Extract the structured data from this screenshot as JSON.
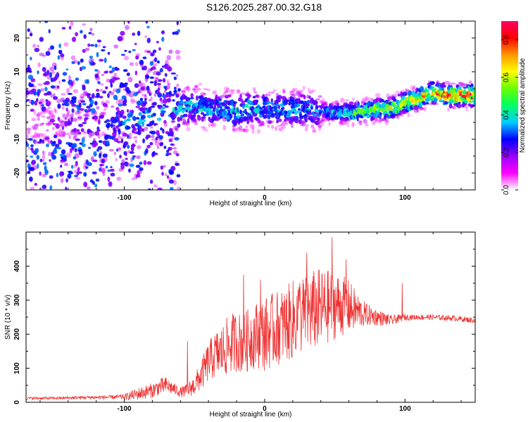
{
  "title": "S126.2025.287.00.32.G18",
  "colors": {
    "axis": "#000000",
    "snr_line": "#ee3333"
  },
  "chart_data": [
    {
      "type": "heatmap",
      "name": "spectrogram",
      "xlabel": "Height of straight line (km)",
      "ylabel": "Frequency (Hz)",
      "xlim": [
        -170,
        150
      ],
      "ylim": [
        -25,
        25
      ],
      "x_ticks": [
        -100,
        0,
        100
      ],
      "y_ticks": [
        -20,
        -10,
        0,
        10,
        20
      ],
      "colorbar": {
        "label": "Normalized spectral amplitude",
        "range": [
          0.0,
          0.9
        ],
        "ticks": [
          0.0,
          0.2,
          0.4,
          0.6,
          0.8
        ],
        "stops": [
          "#ffffff",
          "#ff00ff",
          "#9900ff",
          "#0000ff",
          "#00ccff",
          "#00ff66",
          "#66ff00",
          "#ffff00",
          "#ff9900",
          "#ff0000",
          "#ff0066"
        ]
      },
      "ridge": {
        "x": [
          -170,
          -150,
          -130,
          -110,
          -100,
          -90,
          -80,
          -70,
          -60,
          -50,
          -40,
          -30,
          -20,
          -10,
          0,
          10,
          20,
          30,
          40,
          50,
          60,
          70,
          80,
          90,
          100,
          110,
          120,
          130,
          140,
          150
        ],
        "freq": [
          -6,
          -5,
          -6,
          -5,
          -5,
          -4,
          -3,
          -2,
          -1,
          0,
          -1,
          -1,
          -2,
          -1,
          -1,
          -1,
          -1,
          -1,
          -2,
          -2,
          -2,
          -2,
          -1,
          -1,
          1,
          2,
          4,
          3,
          3,
          3
        ],
        "amplitude": [
          0.1,
          0.15,
          0.2,
          0.25,
          0.35,
          0.35,
          0.4,
          0.35,
          0.4,
          0.4,
          0.35,
          0.35,
          0.4,
          0.4,
          0.35,
          0.35,
          0.4,
          0.35,
          0.3,
          0.35,
          0.45,
          0.55,
          0.6,
          0.65,
          0.7,
          0.75,
          0.8,
          0.85,
          0.85,
          0.85
        ]
      }
    },
    {
      "type": "line",
      "name": "snr",
      "xlabel": "Height of straight line (km)",
      "ylabel": "SNR (10 * v/v)",
      "xlim": [
        -170,
        150
      ],
      "ylim": [
        0,
        500
      ],
      "x_ticks": [
        -100,
        0,
        100
      ],
      "y_ticks": [
        0,
        100,
        200,
        300,
        400
      ],
      "series": [
        {
          "name": "SNR",
          "x": [
            -170,
            -150,
            -130,
            -110,
            -100,
            -95,
            -90,
            -85,
            -80,
            -75,
            -70,
            -65,
            -60,
            -55,
            -50,
            -45,
            -40,
            -35,
            -30,
            -25,
            -20,
            -15,
            -10,
            -5,
            0,
            5,
            10,
            15,
            20,
            25,
            30,
            35,
            40,
            45,
            50,
            55,
            60,
            65,
            70,
            75,
            80,
            85,
            90,
            95,
            100,
            105,
            110,
            120,
            130,
            140,
            150
          ],
          "mean": [
            12,
            12,
            14,
            15,
            16,
            20,
            25,
            30,
            35,
            45,
            50,
            40,
            30,
            35,
            50,
            80,
            120,
            140,
            150,
            170,
            180,
            170,
            190,
            200,
            200,
            210,
            220,
            230,
            240,
            250,
            260,
            270,
            275,
            280,
            285,
            285,
            280,
            270,
            260,
            255,
            250,
            245,
            240,
            245,
            250,
            250,
            250,
            250,
            248,
            245,
            240
          ],
          "noise": [
            4,
            4,
            5,
            6,
            8,
            14,
            18,
            20,
            22,
            25,
            25,
            18,
            15,
            20,
            30,
            45,
            60,
            70,
            80,
            90,
            90,
            90,
            95,
            100,
            110,
            110,
            110,
            110,
            120,
            120,
            120,
            120,
            120,
            110,
            100,
            90,
            80,
            60,
            40,
            30,
            25,
            20,
            15,
            12,
            10,
            8,
            8,
            8,
            8,
            8,
            8
          ],
          "spikes": [
            [
              -15,
              375
            ],
            [
              -55,
              180
            ],
            [
              25,
              350
            ],
            [
              30,
              440
            ],
            [
              48,
              485
            ],
            [
              58,
              420
            ],
            [
              98,
              350
            ],
            [
              -3,
              360
            ]
          ]
        }
      ]
    }
  ]
}
